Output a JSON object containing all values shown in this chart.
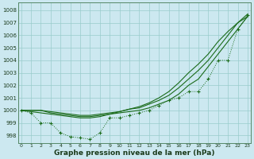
{
  "xlabel": "Graphe pression niveau de la mer (hPa)",
  "ylabel": "",
  "bg_color": "#cce8f0",
  "grid_color": "#99cccc",
  "line_color": "#1a6b1a",
  "xlim": [
    -0.3,
    23.3
  ],
  "ylim": [
    997.4,
    1008.6
  ],
  "yticks": [
    998,
    999,
    1000,
    1001,
    1002,
    1003,
    1004,
    1005,
    1006,
    1007,
    1008
  ],
  "xticks": [
    0,
    1,
    2,
    3,
    4,
    5,
    6,
    7,
    8,
    9,
    10,
    11,
    12,
    13,
    14,
    15,
    16,
    17,
    18,
    19,
    20,
    21,
    22,
    23
  ],
  "series": [
    {
      "x": [
        0,
        1,
        2,
        3,
        4,
        5,
        6,
        7,
        8,
        9,
        10,
        11,
        12,
        13,
        14,
        15,
        16,
        17,
        18,
        19,
        20,
        21,
        22,
        23
      ],
      "y": [
        1000.0,
        999.8,
        999.0,
        999.0,
        998.2,
        997.9,
        997.8,
        997.7,
        998.2,
        999.4,
        999.4,
        999.6,
        999.8,
        1000.0,
        1000.4,
        1000.8,
        1001.0,
        1001.5,
        1001.5,
        1002.5,
        1004.0,
        1004.0,
        1006.5,
        1007.6
      ],
      "linestyle": "dotted",
      "marker": true
    },
    {
      "x": [
        0,
        1,
        2,
        3,
        4,
        5,
        6,
        7,
        8,
        9,
        10,
        11,
        12,
        13,
        14,
        15,
        16,
        17,
        18,
        19,
        20,
        21,
        22,
        23
      ],
      "y": [
        1000.0,
        1000.0,
        1000.0,
        999.8,
        999.7,
        999.6,
        999.5,
        999.5,
        999.6,
        999.7,
        999.8,
        999.9,
        1000.0,
        1000.2,
        1000.5,
        1000.8,
        1001.3,
        1002.0,
        1002.5,
        1003.5,
        1004.5,
        1005.5,
        1006.5,
        1007.5
      ],
      "linestyle": "solid",
      "marker": false
    },
    {
      "x": [
        0,
        1,
        2,
        3,
        4,
        5,
        6,
        7,
        8,
        9,
        10,
        11,
        12,
        13,
        14,
        15,
        16,
        17,
        18,
        19,
        20,
        21,
        22,
        23
      ],
      "y": [
        1000.0,
        1000.0,
        1000.0,
        999.9,
        999.8,
        999.7,
        999.6,
        999.6,
        999.7,
        999.8,
        999.9,
        1000.1,
        1000.2,
        1000.5,
        1000.8,
        1001.2,
        1001.8,
        1002.5,
        1003.2,
        1004.0,
        1005.0,
        1006.0,
        1007.0,
        1007.7
      ],
      "linestyle": "solid",
      "marker": false
    },
    {
      "x": [
        0,
        1,
        2,
        3,
        4,
        5,
        6,
        7,
        8,
        9,
        10,
        11,
        12,
        13,
        14,
        15,
        16,
        17,
        18,
        19,
        20,
        21,
        22,
        23
      ],
      "y": [
        1000.0,
        999.9,
        999.8,
        999.7,
        999.6,
        999.5,
        999.4,
        999.4,
        999.5,
        999.7,
        999.9,
        1000.1,
        1000.3,
        1000.6,
        1001.0,
        1001.5,
        1002.2,
        1003.0,
        1003.7,
        1004.5,
        1005.5,
        1006.3,
        1007.0,
        1007.5
      ],
      "linestyle": "solid",
      "marker": false
    }
  ]
}
